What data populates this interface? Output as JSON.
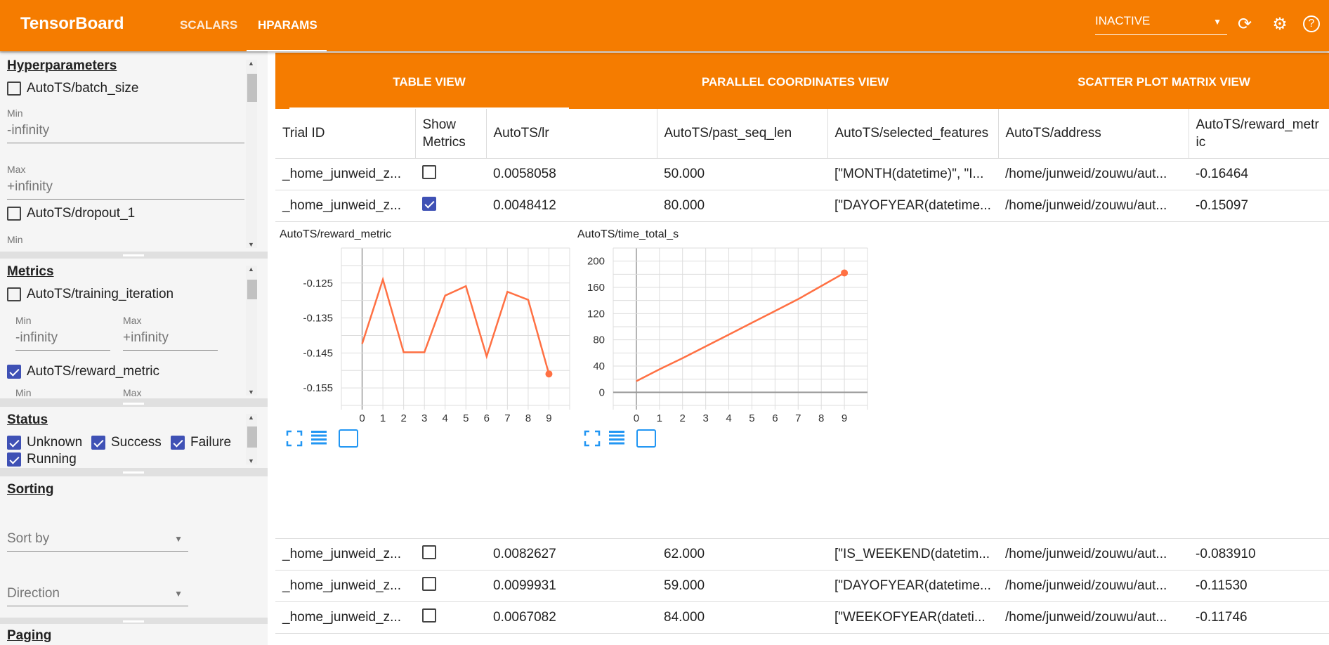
{
  "header": {
    "title": "TensorBoard",
    "nav": [
      "SCALARS",
      "HPARAMS"
    ],
    "active_nav": "HPARAMS",
    "run_select": "INACTIVE",
    "icons": [
      "refresh-icon",
      "settings-icon",
      "help-icon"
    ]
  },
  "sidebar": {
    "hyperparameters": {
      "title": "Hyperparameters",
      "items": [
        {
          "label": "AutoTS/batch_size",
          "checked": false,
          "min_label": "Min",
          "min": "-infinity",
          "max_label": "Max",
          "max": "+infinity"
        },
        {
          "label": "AutoTS/dropout_1",
          "checked": false,
          "min_label": "Min"
        }
      ]
    },
    "metrics": {
      "title": "Metrics",
      "items": [
        {
          "label": "AutoTS/training_iteration",
          "checked": false,
          "min_label": "Min",
          "min": "-infinity",
          "max_label": "Max",
          "max": "+infinity"
        },
        {
          "label": "AutoTS/reward_metric",
          "checked": true,
          "min_label": "Min",
          "max_label": "Max"
        }
      ]
    },
    "status": {
      "title": "Status",
      "items": [
        {
          "label": "Unknown",
          "checked": true
        },
        {
          "label": "Success",
          "checked": true
        },
        {
          "label": "Failure",
          "checked": true
        },
        {
          "label": "Running",
          "checked": true
        }
      ]
    },
    "sorting": {
      "title": "Sorting",
      "sort_by": "Sort by",
      "direction": "Direction"
    },
    "paging": {
      "title": "Paging"
    }
  },
  "tabs": [
    "TABLE VIEW",
    "PARALLEL COORDINATES VIEW",
    "SCATTER PLOT MATRIX VIEW"
  ],
  "table": {
    "columns": [
      "Trial ID",
      "Show Metrics",
      "AutoTS/lr",
      "AutoTS/past_seq_len",
      "AutoTS/selected_features",
      "AutoTS/address",
      "AutoTS/reward_metric"
    ],
    "rows": [
      {
        "trial": "_home_junweid_z...",
        "show": false,
        "lr": "0.0058058",
        "past": "50.000",
        "features": "[\"MONTH(datetime)\", \"I...",
        "address": "/home/junweid/zouwu/aut...",
        "reward": "-0.16464"
      },
      {
        "trial": "_home_junweid_z...",
        "show": true,
        "lr": "0.0048412",
        "past": "80.000",
        "features": "[\"DAYOFYEAR(datetime...",
        "address": "/home/junweid/zouwu/aut...",
        "reward": "-0.15097"
      },
      {
        "trial": "_home_junweid_z...",
        "show": false,
        "lr": "0.0082627",
        "past": "62.000",
        "features": "[\"IS_WEEKEND(datetim...",
        "address": "/home/junweid/zouwu/aut...",
        "reward": "-0.083910"
      },
      {
        "trial": "_home_junweid_z...",
        "show": false,
        "lr": "0.0099931",
        "past": "59.000",
        "features": "[\"DAYOFYEAR(datetime...",
        "address": "/home/junweid/zouwu/aut...",
        "reward": "-0.11530"
      },
      {
        "trial": "_home_junweid_z...",
        "show": false,
        "lr": "0.0067082",
        "past": "84.000",
        "features": "[\"WEEKOFYEAR(dateti...",
        "address": "/home/junweid/zouwu/aut...",
        "reward": "-0.11746"
      }
    ]
  },
  "chart_data": [
    {
      "type": "line",
      "title": "AutoTS/reward_metric",
      "x": [
        0,
        1,
        2,
        3,
        4,
        5,
        6,
        7,
        8,
        9
      ],
      "values": [
        -0.1424,
        -0.124,
        -0.1448,
        -0.1448,
        -0.1286,
        -0.1259,
        -0.146,
        -0.1275,
        -0.1298,
        -0.151
      ],
      "xticks": [
        "0",
        "1",
        "2",
        "3",
        "4",
        "5",
        "6",
        "7",
        "8",
        "9"
      ],
      "yticks": [
        "-0.125",
        "-0.135",
        "-0.145",
        "-0.155"
      ],
      "ytick_values": [
        -0.125,
        -0.135,
        -0.145,
        -0.155
      ],
      "ylim": [
        -0.16,
        -0.115
      ],
      "xlim": [
        -1,
        10
      ],
      "grid": true,
      "color": "#ff7043"
    },
    {
      "type": "line",
      "title": "AutoTS/time_total_s",
      "x": [
        0,
        1,
        2,
        3,
        4,
        5,
        6,
        7,
        8,
        9
      ],
      "values": [
        17,
        35,
        52,
        70,
        88,
        106,
        124,
        142,
        162,
        182
      ],
      "xticks": [
        "0",
        "1",
        "2",
        "3",
        "4",
        "5",
        "6",
        "7",
        "8",
        "9"
      ],
      "yticks": [
        "200",
        "160",
        "120",
        "80",
        "40",
        "0"
      ],
      "ytick_values": [
        200,
        160,
        120,
        80,
        40,
        0
      ],
      "ylim": [
        -20,
        220
      ],
      "xlim": [
        -1,
        10
      ],
      "grid": true,
      "color": "#ff7043"
    }
  ],
  "chart_icons": [
    "fullscreen-icon",
    "data-table-icon",
    "fit-domain-icon"
  ],
  "colors": {
    "brand": "#f57c00",
    "accent": "#3f51b5",
    "line": "#ff7043",
    "icon": "#2196f3"
  }
}
